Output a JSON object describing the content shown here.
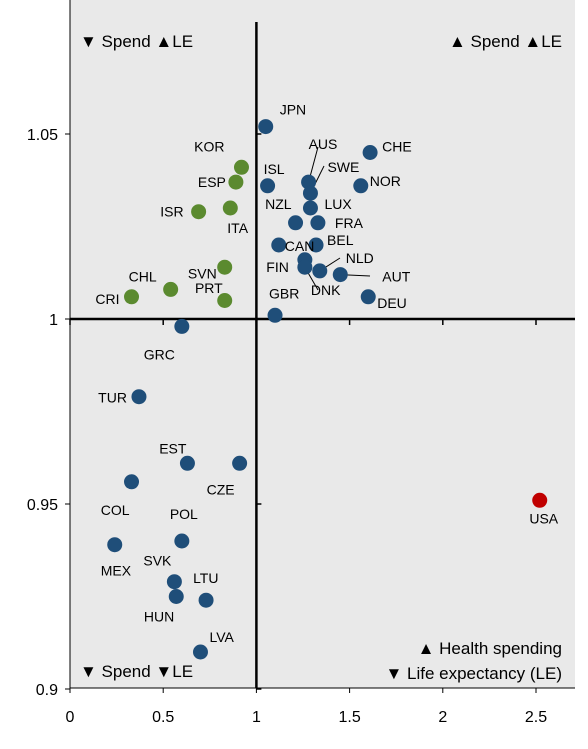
{
  "chart_data": {
    "type": "scatter",
    "xlim": [
      0,
      2.7
    ],
    "ylim": [
      0.9,
      1.075
    ],
    "x_ticks": [
      0,
      0.5,
      1,
      1.5,
      2,
      2.5
    ],
    "x_tick_labels": [
      "0",
      "0.5",
      "1",
      "1.5",
      "2",
      "2.5"
    ],
    "y_ticks": [
      0.9,
      0.95,
      1,
      1.05
    ],
    "y_tick_labels": [
      "0.9",
      "0.95",
      "1",
      "1.05"
    ],
    "cross": {
      "x": 1,
      "y": 1
    },
    "grid": false,
    "colors": {
      "blue": "#1f4e79",
      "green": "#5b8a2f",
      "red": "#c00000",
      "panel": "#e9e9e9",
      "axis": "#000000"
    },
    "quadrant_labels": {
      "top_left": "▼ Spend ▲LE",
      "top_right": "▲ Spend ▲LE",
      "bottom_left": "▼ Spend ▼LE",
      "bottom_right_line1": "▲ Health spending",
      "bottom_right_line2": "▼ Life expectancy (LE)"
    },
    "points": [
      {
        "label": "JPN",
        "x": 1.05,
        "y": 1.052,
        "color": "blue"
      },
      {
        "label": "KOR",
        "x": 0.92,
        "y": 1.041,
        "color": "green"
      },
      {
        "label": "ESP",
        "x": 0.89,
        "y": 1.037,
        "color": "green"
      },
      {
        "label": "ISL",
        "x": 1.06,
        "y": 1.036,
        "color": "blue"
      },
      {
        "label": "AUS",
        "x": 1.28,
        "y": 1.037,
        "color": "blue"
      },
      {
        "label": "SWE",
        "x": 1.29,
        "y": 1.034,
        "color": "blue"
      },
      {
        "label": "CHE",
        "x": 1.61,
        "y": 1.045,
        "color": "blue"
      },
      {
        "label": "NOR",
        "x": 1.56,
        "y": 1.036,
        "color": "blue"
      },
      {
        "label": "ISR",
        "x": 0.69,
        "y": 1.029,
        "color": "green"
      },
      {
        "label": "ITA",
        "x": 0.86,
        "y": 1.03,
        "color": "green"
      },
      {
        "label": "LUX",
        "x": 1.29,
        "y": 1.03,
        "color": "blue"
      },
      {
        "label": "NZL",
        "x": 1.21,
        "y": 1.026,
        "color": "blue"
      },
      {
        "label": "FRA",
        "x": 1.33,
        "y": 1.026,
        "color": "blue"
      },
      {
        "label": "PRT",
        "x": 0.83,
        "y": 1.014,
        "color": "green"
      },
      {
        "label": "CAN",
        "x": 1.12,
        "y": 1.02,
        "color": "blue"
      },
      {
        "label": "BEL",
        "x": 1.32,
        "y": 1.02,
        "color": "blue"
      },
      {
        "label": "FIN",
        "x": 1.26,
        "y": 1.016,
        "color": "blue"
      },
      {
        "label": "NLD",
        "x": 1.34,
        "y": 1.013,
        "color": "blue"
      },
      {
        "label": "AUT",
        "x": 1.45,
        "y": 1.012,
        "color": "blue"
      },
      {
        "label": "DNK",
        "x": 1.26,
        "y": 1.014,
        "color": "blue"
      },
      {
        "label": "CHL",
        "x": 0.54,
        "y": 1.008,
        "color": "green"
      },
      {
        "label": "SVN",
        "x": 0.83,
        "y": 1.005,
        "color": "green"
      },
      {
        "label": "CRI",
        "x": 0.33,
        "y": 1.006,
        "color": "green"
      },
      {
        "label": "GBR",
        "x": 1.1,
        "y": 1.001,
        "color": "blue"
      },
      {
        "label": "DEU",
        "x": 1.6,
        "y": 1.006,
        "color": "blue"
      },
      {
        "label": "GRC",
        "x": 0.6,
        "y": 0.998,
        "color": "blue"
      },
      {
        "label": "TUR",
        "x": 0.37,
        "y": 0.979,
        "color": "blue"
      },
      {
        "label": "EST",
        "x": 0.63,
        "y": 0.961,
        "color": "blue"
      },
      {
        "label": "CZE",
        "x": 0.91,
        "y": 0.961,
        "color": "blue"
      },
      {
        "label": "COL",
        "x": 0.33,
        "y": 0.956,
        "color": "blue"
      },
      {
        "label": "USA",
        "x": 2.52,
        "y": 0.951,
        "color": "red"
      },
      {
        "label": "POL",
        "x": 0.6,
        "y": 0.94,
        "color": "blue"
      },
      {
        "label": "MEX",
        "x": 0.24,
        "y": 0.939,
        "color": "blue"
      },
      {
        "label": "SVK",
        "x": 0.56,
        "y": 0.929,
        "color": "blue"
      },
      {
        "label": "LTU",
        "x": 0.73,
        "y": 0.924,
        "color": "blue"
      },
      {
        "label": "HUN",
        "x": 0.57,
        "y": 0.925,
        "color": "blue"
      },
      {
        "label": "LVA",
        "x": 0.7,
        "y": 0.91,
        "color": "blue"
      }
    ]
  }
}
